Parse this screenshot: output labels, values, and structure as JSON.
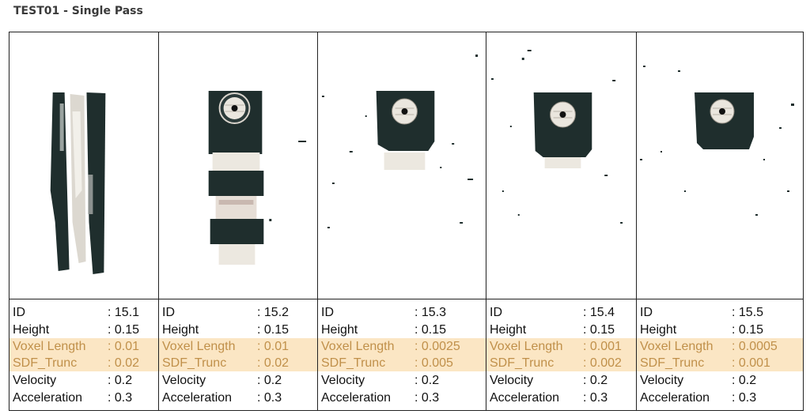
{
  "title": "TEST01 - Single Pass",
  "columns": [
    {
      "id": ": 15.1",
      "height": ": 0.15",
      "voxel_length": ": 0.01",
      "sdf_trunc": ": 0.02",
      "velocity": ": 0.2",
      "acceleration": ": 0.3"
    },
    {
      "id": ": 15.2",
      "height": ": 0.15",
      "voxel_length": ": 0.01",
      "sdf_trunc": ": 0.02",
      "velocity": ": 0.2",
      "acceleration": ": 0.3"
    },
    {
      "id": ": 15.3",
      "height": ": 0.15",
      "voxel_length": ": 0.0025",
      "sdf_trunc": ": 0.005",
      "velocity": ": 0.2",
      "acceleration": ": 0.3"
    },
    {
      "id": ": 15.4",
      "height": ": 0.15",
      "voxel_length": ": 0.001",
      "sdf_trunc": ": 0.002",
      "velocity": ": 0.2",
      "acceleration": ": 0.3"
    },
    {
      "id": ": 15.5",
      "height": ": 0.15",
      "voxel_length": ": 0.0005",
      "sdf_trunc": ": 0.001",
      "velocity": ": 0.2",
      "acceleration": ": 0.3"
    }
  ],
  "labels": {
    "id": "ID",
    "height": "Height",
    "voxel_length": "Voxel Length",
    "sdf_trunc": "SDF_Trunc",
    "velocity": "Velocity",
    "acceleration": "Acceleration"
  },
  "colors": {
    "highlight_band": "#fbe6c4",
    "highlight_text": "#c0904a",
    "dark_panel": "#1f2e2d"
  }
}
